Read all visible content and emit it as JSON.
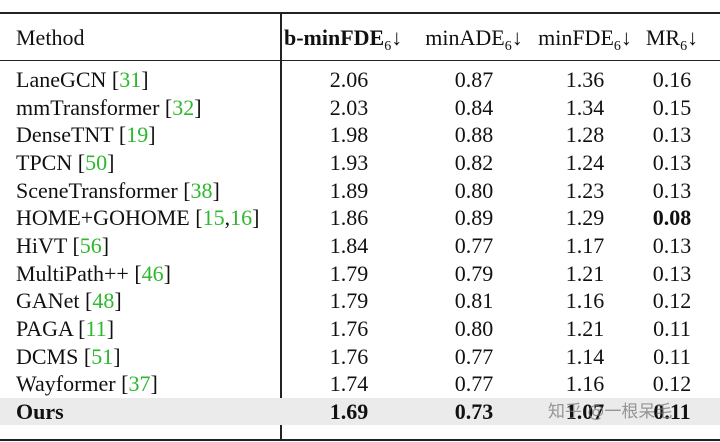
{
  "table": {
    "cite_open": "[",
    "cite_close": "]",
    "cite_sep": ",",
    "header": [
      {
        "text": "Method"
      },
      {
        "text": "b-minFDE",
        "sub": "6",
        "arrow": "↓",
        "bold": true
      },
      {
        "text": "minADE",
        "sub": "6",
        "arrow": "↓"
      },
      {
        "text": "minFDE",
        "sub": "6",
        "arrow": "↓"
      },
      {
        "text": "MR",
        "sub": "6",
        "arrow": "↓"
      }
    ],
    "rows": [
      {
        "method": "LaneGCN",
        "cites": [
          "31"
        ],
        "values": [
          "2.06",
          "0.87",
          "1.36",
          "0.16"
        ]
      },
      {
        "method": "mmTransformer",
        "cites": [
          "32"
        ],
        "values": [
          "2.03",
          "0.84",
          "1.34",
          "0.15"
        ]
      },
      {
        "method": "DenseTNT",
        "cites": [
          "19"
        ],
        "values": [
          "1.98",
          "0.88",
          "1.28",
          "0.13"
        ]
      },
      {
        "method": "TPCN",
        "cites": [
          "50"
        ],
        "values": [
          "1.93",
          "0.82",
          "1.24",
          "0.13"
        ]
      },
      {
        "method": "SceneTransformer",
        "cites": [
          "38"
        ],
        "values": [
          "1.89",
          "0.80",
          "1.23",
          "0.13"
        ]
      },
      {
        "method": "HOME+GOHOME",
        "cites": [
          "15",
          "16"
        ],
        "values": [
          "1.86",
          "0.89",
          "1.29",
          "0.08"
        ],
        "bold_values": [
          3
        ]
      },
      {
        "method": "HiVT",
        "cites": [
          "56"
        ],
        "values": [
          "1.84",
          "0.77",
          "1.17",
          "0.13"
        ]
      },
      {
        "method": "MultiPath++",
        "cites": [
          "46"
        ],
        "values": [
          "1.79",
          "0.79",
          "1.21",
          "0.13"
        ]
      },
      {
        "method": "GANet",
        "cites": [
          "48"
        ],
        "values": [
          "1.79",
          "0.81",
          "1.16",
          "0.12"
        ]
      },
      {
        "method": "PAGA",
        "cites": [
          "11"
        ],
        "values": [
          "1.76",
          "0.80",
          "1.21",
          "0.11"
        ]
      },
      {
        "method": "DCMS",
        "cites": [
          "51"
        ],
        "values": [
          "1.76",
          "0.77",
          "1.14",
          "0.11"
        ]
      },
      {
        "method": "Wayformer",
        "cites": [
          "37"
        ],
        "values": [
          "1.74",
          "0.77",
          "1.16",
          "0.12"
        ]
      },
      {
        "method": "Ours",
        "cites": [],
        "values": [
          "1.69",
          "0.73",
          "1.07",
          "0.11"
        ],
        "bold": true,
        "highlight": true
      }
    ]
  },
  "watermark": "知乎 @一根呆毛"
}
